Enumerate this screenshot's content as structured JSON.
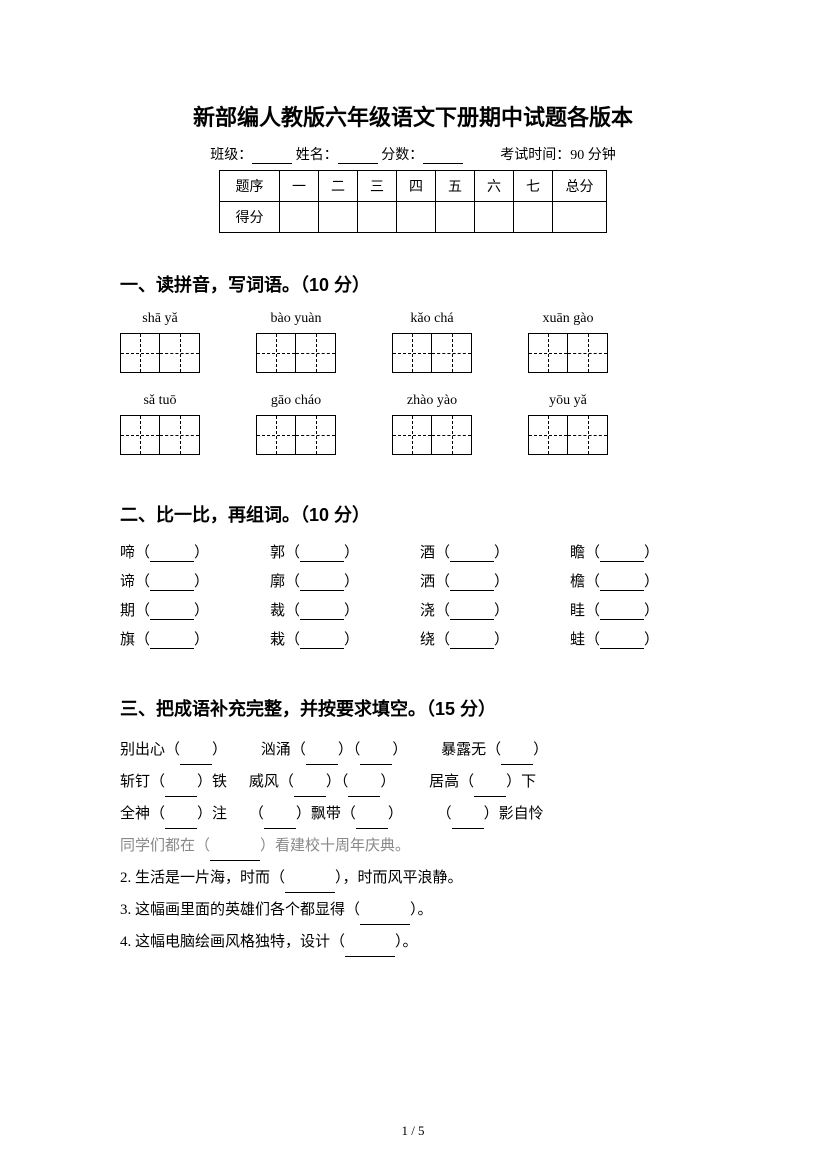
{
  "title": "新部编人教版六年级语文下册期中试题各版本",
  "meta": {
    "class_label": "班级：",
    "name_label": "姓名：",
    "score_label": "分数：",
    "time_label": "考试时间：90 分钟"
  },
  "score_table": {
    "header": [
      "题序",
      "一",
      "二",
      "三",
      "四",
      "五",
      "六",
      "七",
      "总分"
    ],
    "row2_label": "得分"
  },
  "section1": {
    "heading": "一、读拼音，写词语。（10 分）",
    "row1": [
      "shā yǎ",
      "bào yuàn",
      "kǎo chá",
      "xuān gào"
    ],
    "row2": [
      "sǎ   tuō",
      "gāo cháo",
      "zhào yào",
      "yōu yǎ"
    ]
  },
  "section2": {
    "heading": "二、比一比，再组词。（10 分）",
    "rows": [
      [
        "啼",
        "郭",
        "酒",
        "瞻"
      ],
      [
        "谛",
        "廓",
        "洒",
        "檐"
      ],
      [
        "期",
        "裁",
        "浇",
        "眭"
      ],
      [
        "旗",
        "栽",
        "绕",
        "蛙"
      ]
    ]
  },
  "section3": {
    "heading": "三、把成语补充完整，并按要求填空。（15 分）",
    "line1": {
      "a": "别出心",
      "b": "汹涌",
      "c": "暴露无"
    },
    "line2": {
      "a1": "斩钉",
      "a2": "铁",
      "b": "威风",
      "c1": "居高",
      "c2": "下"
    },
    "line3": {
      "a1": "全神",
      "a2": "注",
      "b1": "飘带",
      "c": "影自怜"
    },
    "sentence_faded": {
      "pre": "同学们都在（",
      "post": "）看建校十周年庆典。"
    },
    "s2": {
      "pre": "2. 生活是一片海，时而（",
      "post": "），时而风平浪静。"
    },
    "s3": {
      "pre": "3. 这幅画里面的英雄们各个都显得（",
      "post": "）。"
    },
    "s4": {
      "pre": "4. 这幅电脑绘画风格独特，设计（",
      "post": "）。"
    }
  },
  "footer": "1  /  5",
  "colors": {
    "text": "#000000",
    "faded": "#888888",
    "bg": "#ffffff"
  },
  "typography": {
    "title_size": 22,
    "heading_size": 18,
    "body_size": 15,
    "meta_size": 14
  }
}
